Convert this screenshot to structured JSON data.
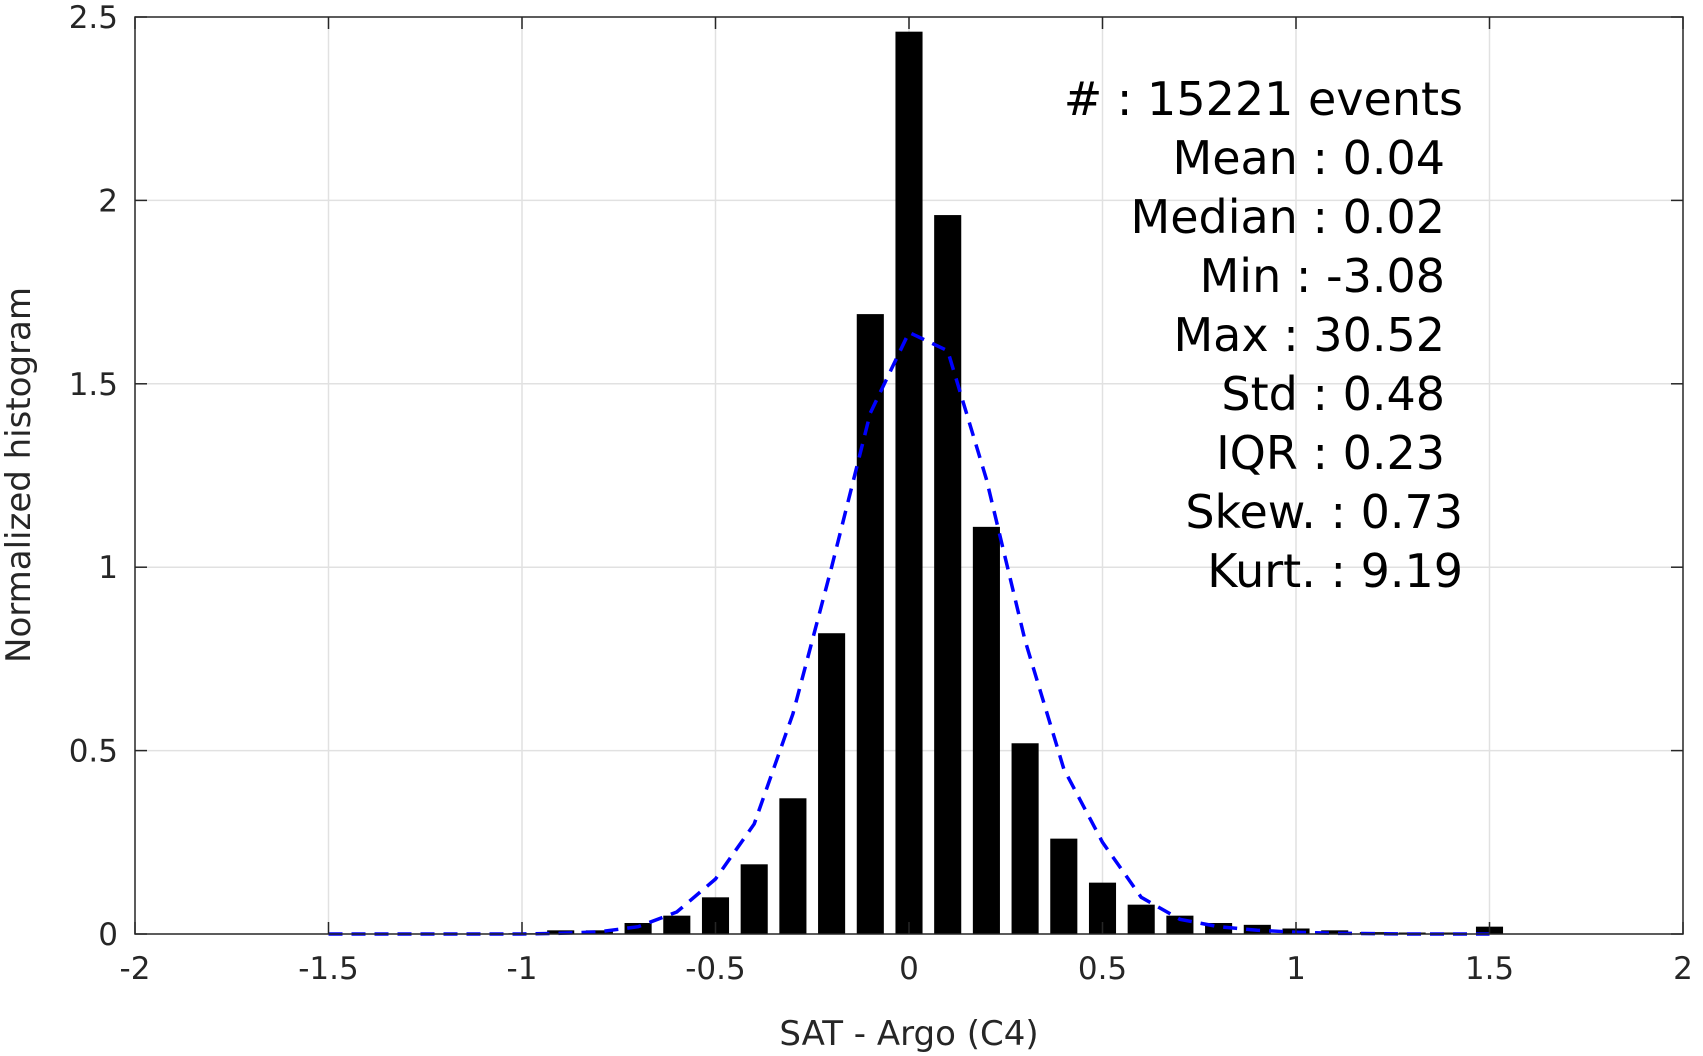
{
  "chart_data": {
    "type": "bar",
    "xlabel": "SAT - Argo (C4)",
    "ylabel": "Normalized histogram",
    "xlim": [
      -2,
      2
    ],
    "ylim": [
      0,
      2.5
    ],
    "xticks": [
      -2,
      -1.5,
      -1,
      -0.5,
      0,
      0.5,
      1,
      1.5,
      2
    ],
    "xtick_labels": [
      "-2",
      "-1.5",
      "-1",
      "-0.5",
      "0",
      "0.5",
      "1",
      "1.5",
      "2"
    ],
    "yticks": [
      0,
      0.5,
      1,
      1.5,
      2,
      2.5
    ],
    "ytick_labels": [
      "0",
      "0.5",
      "1",
      "1.5",
      "2",
      "2.5"
    ],
    "grid": true,
    "bar_color": "#000000",
    "bar_width": 0.07,
    "series": [
      {
        "kind": "bar",
        "x": [
          -1.5,
          -1.4,
          -1.3,
          -1.2,
          -1.1,
          -1.0,
          -0.9,
          -0.8,
          -0.7,
          -0.6,
          -0.5,
          -0.4,
          -0.3,
          -0.2,
          -0.1,
          0.0,
          0.1,
          0.2,
          0.3,
          0.4,
          0.5,
          0.6,
          0.7,
          0.8,
          0.9,
          1.0,
          1.1,
          1.2,
          1.3,
          1.4,
          1.5
        ],
        "values": [
          0.001,
          0.0,
          0.0,
          0.001,
          0.001,
          0.002,
          0.01,
          0.01,
          0.03,
          0.05,
          0.1,
          0.19,
          0.37,
          0.82,
          1.69,
          2.46,
          1.96,
          1.11,
          0.52,
          0.26,
          0.14,
          0.08,
          0.05,
          0.03,
          0.025,
          0.015,
          0.01,
          0.005,
          0.004,
          0.004,
          0.02
        ]
      },
      {
        "kind": "line",
        "style": "dashed",
        "color": "#0000ff",
        "x": [
          -1.5,
          -1.4,
          -1.3,
          -1.2,
          -1.1,
          -1.0,
          -0.9,
          -0.8,
          -0.7,
          -0.6,
          -0.5,
          -0.4,
          -0.3,
          -0.2,
          -0.1,
          0.0,
          0.1,
          0.2,
          0.3,
          0.4,
          0.5,
          0.6,
          0.7,
          0.8,
          0.9,
          1.0,
          1.1,
          1.2,
          1.3,
          1.4,
          1.5
        ],
        "values": [
          0.0,
          0.0,
          0.0,
          0.0,
          0.0,
          0.0,
          0.002,
          0.006,
          0.02,
          0.06,
          0.15,
          0.3,
          0.6,
          1.0,
          1.42,
          1.64,
          1.59,
          1.24,
          0.8,
          0.45,
          0.25,
          0.1,
          0.04,
          0.02,
          0.01,
          0.005,
          0.002,
          0.001,
          0.0,
          0.0,
          0.0
        ]
      }
    ],
    "annotations": [
      {
        "text": "#  : 15221 events",
        "align": "right"
      },
      {
        "text": "Mean : 0.04",
        "align": "right"
      },
      {
        "text": "Median : 0.02",
        "align": "right"
      },
      {
        "text": "Min : -3.08",
        "align": "right"
      },
      {
        "text": "Max : 30.52",
        "align": "right"
      },
      {
        "text": "Std : 0.48",
        "align": "right"
      },
      {
        "text": "IQR : 0.23",
        "align": "right"
      },
      {
        "text": "Skew. : 0.73",
        "align": "right"
      },
      {
        "text": "Kurt. : 9.19",
        "align": "right"
      }
    ]
  }
}
